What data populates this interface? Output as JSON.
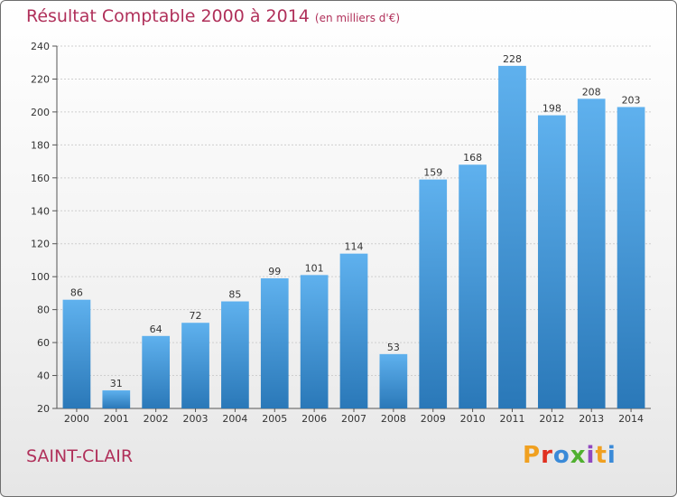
{
  "title": "Résultat Comptable 2000 à 2014",
  "subtitle": "(en milliers d'€)",
  "town": "SAINT-CLAIR",
  "logo_text": "Proxiti",
  "logo_colors": [
    "#f0a020",
    "#e03020",
    "#3a8ad8",
    "#50b030",
    "#9048c0",
    "#f0a020",
    "#3a8ad8"
  ],
  "colors": {
    "bar_top": "#5fb1ee",
    "bar_bottom": "#2a78b8",
    "title": "#b0305a"
  },
  "chart_data": {
    "type": "bar",
    "categories": [
      "2000",
      "2001",
      "2002",
      "2003",
      "2004",
      "2005",
      "2006",
      "2007",
      "2008",
      "2009",
      "2010",
      "2011",
      "2012",
      "2013",
      "2014"
    ],
    "values": [
      86,
      31,
      64,
      72,
      85,
      99,
      101,
      114,
      53,
      159,
      168,
      228,
      198,
      208,
      203
    ],
    "ylim": [
      20,
      240
    ],
    "yticks": [
      20,
      40,
      60,
      80,
      100,
      120,
      140,
      160,
      180,
      200,
      220,
      240
    ],
    "grid": true,
    "data_labels": true
  }
}
